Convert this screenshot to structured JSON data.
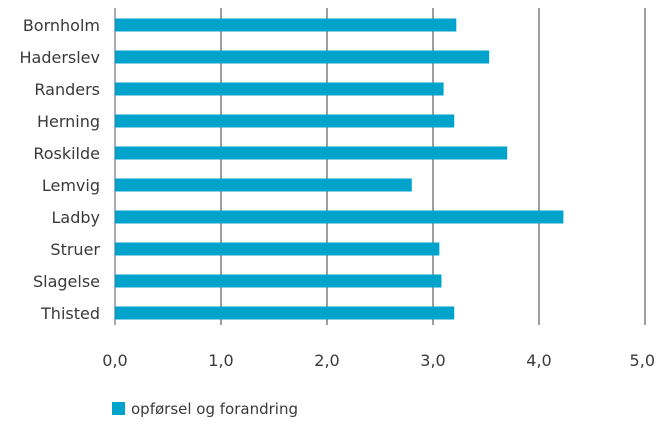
{
  "chart_data": {
    "type": "bar",
    "orientation": "horizontal",
    "categories": [
      "Bornholm",
      "Haderslev",
      "Randers",
      "Herning",
      "Roskilde",
      "Lemvig",
      "Ladby",
      "Struer",
      "Slagelse",
      "Thisted"
    ],
    "series": [
      {
        "name": "opførsel og forandring",
        "values": [
          3.22,
          3.53,
          3.1,
          3.2,
          3.7,
          2.8,
          4.23,
          3.06,
          3.08,
          3.2
        ],
        "color": "#00a3cc"
      }
    ],
    "xlim": [
      0,
      5
    ],
    "x_ticks": [
      "0,0",
      "1,0",
      "2,0",
      "3,0",
      "4,0",
      "5,0"
    ],
    "grid": "vertical",
    "legend_position": "bottom-left",
    "title": "",
    "xlabel": "",
    "ylabel": ""
  }
}
